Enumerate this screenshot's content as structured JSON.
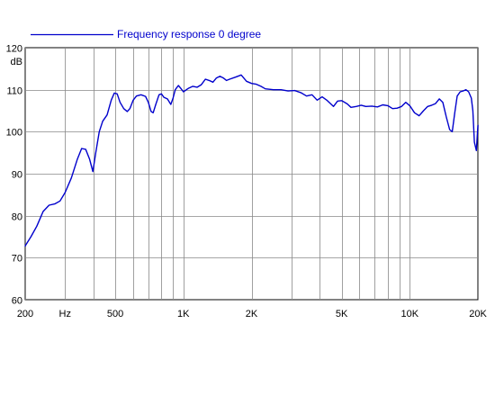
{
  "chart_data": {
    "type": "line",
    "title": "",
    "xlabel": "",
    "ylabel": "",
    "y_unit": "dB",
    "x_scale": "log",
    "xlim": [
      200,
      20000
    ],
    "ylim": [
      60,
      120
    ],
    "grid": true,
    "legend": "top-left",
    "y_ticks": [
      60,
      70,
      80,
      90,
      100,
      110,
      120
    ],
    "x_grid_values": [
      200,
      300,
      400,
      500,
      600,
      700,
      800,
      900,
      1000,
      2000,
      3000,
      4000,
      5000,
      6000,
      7000,
      8000,
      9000,
      10000,
      20000
    ],
    "x_tick_labels": [
      {
        "value": 200,
        "label": "200"
      },
      {
        "value": 300,
        "label": "Hz"
      },
      {
        "value": 500,
        "label": "500"
      },
      {
        "value": 1000,
        "label": "1K"
      },
      {
        "value": 2000,
        "label": "2K"
      },
      {
        "value": 5000,
        "label": "5K"
      },
      {
        "value": 10000,
        "label": "10K"
      },
      {
        "value": 20000,
        "label": "20K"
      }
    ],
    "series": [
      {
        "name": "Frequency response 0 degree",
        "color": "#0000cc",
        "points": [
          [
            200,
            72.8
          ],
          [
            212,
            75
          ],
          [
            225,
            77.5
          ],
          [
            240,
            81
          ],
          [
            255,
            82.5
          ],
          [
            270,
            82.8
          ],
          [
            285,
            83.5
          ],
          [
            300,
            85.5
          ],
          [
            320,
            89
          ],
          [
            340,
            93.5
          ],
          [
            355,
            96
          ],
          [
            370,
            95.8
          ],
          [
            385,
            93.5
          ],
          [
            398,
            90.5
          ],
          [
            410,
            95
          ],
          [
            425,
            100
          ],
          [
            440,
            102.5
          ],
          [
            460,
            104
          ],
          [
            480,
            107.5
          ],
          [
            495,
            109.2
          ],
          [
            510,
            109
          ],
          [
            525,
            107
          ],
          [
            545,
            105.5
          ],
          [
            565,
            104.8
          ],
          [
            580,
            105.5
          ],
          [
            600,
            107.5
          ],
          [
            620,
            108.5
          ],
          [
            650,
            108.8
          ],
          [
            680,
            108.4
          ],
          [
            700,
            107
          ],
          [
            720,
            104.8
          ],
          [
            735,
            104.5
          ],
          [
            755,
            106.5
          ],
          [
            780,
            108.8
          ],
          [
            800,
            109
          ],
          [
            820,
            108.2
          ],
          [
            850,
            107.8
          ],
          [
            880,
            106.5
          ],
          [
            900,
            108
          ],
          [
            920,
            110
          ],
          [
            950,
            111
          ],
          [
            975,
            110.3
          ],
          [
            1000,
            109.5
          ],
          [
            1050,
            110.3
          ],
          [
            1100,
            110.8
          ],
          [
            1150,
            110.6
          ],
          [
            1200,
            111.2
          ],
          [
            1250,
            112.5
          ],
          [
            1300,
            112.2
          ],
          [
            1350,
            111.8
          ],
          [
            1400,
            112.8
          ],
          [
            1450,
            113.2
          ],
          [
            1500,
            112.8
          ],
          [
            1550,
            112.2
          ],
          [
            1600,
            112.5
          ],
          [
            1700,
            113
          ],
          [
            1800,
            113.5
          ],
          [
            1900,
            112
          ],
          [
            2000,
            111.5
          ],
          [
            2100,
            111.3
          ],
          [
            2200,
            110.8
          ],
          [
            2300,
            110.2
          ],
          [
            2500,
            110
          ],
          [
            2700,
            110
          ],
          [
            2900,
            109.7
          ],
          [
            3100,
            109.8
          ],
          [
            3300,
            109.3
          ],
          [
            3500,
            108.5
          ],
          [
            3700,
            108.8
          ],
          [
            3900,
            107.5
          ],
          [
            4100,
            108.3
          ],
          [
            4300,
            107.5
          ],
          [
            4600,
            106
          ],
          [
            4800,
            107.3
          ],
          [
            5000,
            107.4
          ],
          [
            5300,
            106.6
          ],
          [
            5500,
            105.8
          ],
          [
            5800,
            106
          ],
          [
            6100,
            106.3
          ],
          [
            6400,
            106
          ],
          [
            6800,
            106.1
          ],
          [
            7200,
            105.9
          ],
          [
            7600,
            106.4
          ],
          [
            8000,
            106.2
          ],
          [
            8400,
            105.5
          ],
          [
            8800,
            105.6
          ],
          [
            9200,
            106
          ],
          [
            9600,
            107
          ],
          [
            10000,
            106.2
          ],
          [
            10500,
            104.5
          ],
          [
            11000,
            103.8
          ],
          [
            11500,
            105
          ],
          [
            12000,
            106
          ],
          [
            12500,
            106.3
          ],
          [
            13000,
            106.7
          ],
          [
            13500,
            107.8
          ],
          [
            14000,
            107
          ],
          [
            14500,
            103.5
          ],
          [
            15000,
            100.5
          ],
          [
            15400,
            100
          ],
          [
            15800,
            104.5
          ],
          [
            16200,
            108.5
          ],
          [
            16700,
            109.5
          ],
          [
            17200,
            109.7
          ],
          [
            17700,
            110
          ],
          [
            18200,
            109.5
          ],
          [
            18700,
            108
          ],
          [
            19000,
            105
          ],
          [
            19300,
            97.5
          ],
          [
            19700,
            95.5
          ],
          [
            20000,
            101.5
          ]
        ]
      }
    ]
  }
}
